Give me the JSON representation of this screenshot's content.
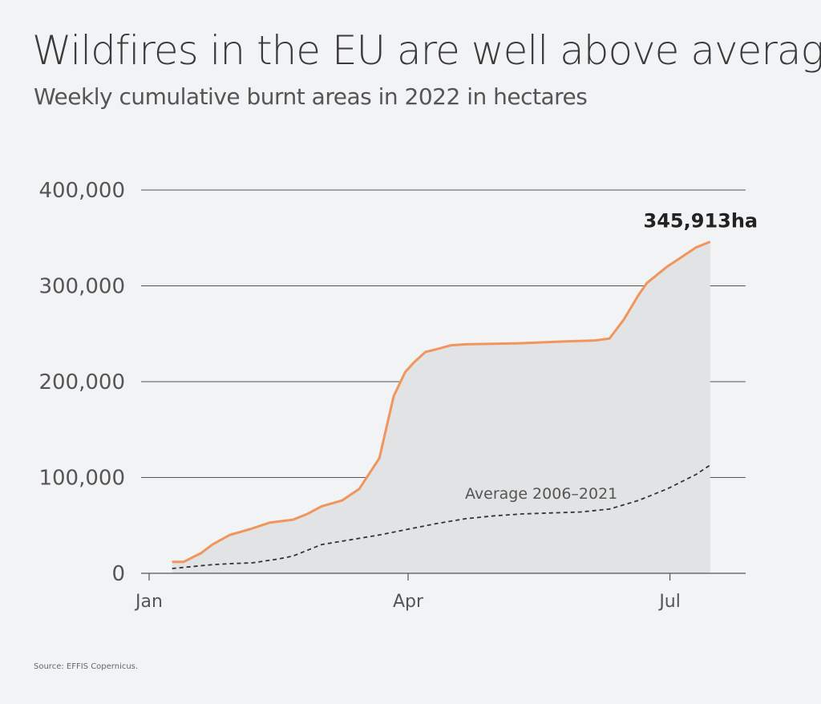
{
  "title": "Wildfires in the EU are well above average",
  "subtitle": "Weekly cumulative burnt areas in 2022 in hectares",
  "source": "Source: EFFIS Copernicus.",
  "colors": {
    "primary": "#f0955c",
    "average": "#333333",
    "area": "#e2e3e5",
    "grid": "#555555"
  },
  "chart_data": {
    "type": "line",
    "ylim": [
      0,
      400000
    ],
    "yticks": [
      {
        "value": 0,
        "label": "0"
      },
      {
        "value": 100000,
        "label": "100,000"
      },
      {
        "value": 200000,
        "label": "200,000"
      },
      {
        "value": 300000,
        "label": "300,000"
      },
      {
        "value": 400000,
        "label": "400,000"
      }
    ],
    "xlim": [
      0,
      230
    ],
    "xticks": [
      {
        "value": 0,
        "label": "Jan"
      },
      {
        "value": 90,
        "label": "Apr"
      },
      {
        "value": 181,
        "label": "Jul"
      }
    ],
    "grid": true,
    "end_annotation": "345,913ha",
    "series": [
      {
        "name": "",
        "style": "solid",
        "x": [
          8,
          12,
          18,
          22,
          28,
          35,
          42,
          50,
          55,
          60,
          67,
          73,
          80,
          85,
          89,
          92,
          96,
          100,
          105,
          110,
          128,
          145,
          155,
          160,
          165,
          170,
          173,
          180,
          185,
          190,
          195
        ],
        "y": [
          12000,
          12000,
          21000,
          30000,
          40000,
          46000,
          53000,
          56000,
          62000,
          70000,
          76000,
          88000,
          120000,
          185000,
          210000,
          220000,
          231000,
          234000,
          238000,
          239000,
          240000,
          242000,
          243000,
          245000,
          265000,
          290000,
          303000,
          320000,
          330000,
          340000,
          346000
        ]
      },
      {
        "name": "Average 2006–2021",
        "style": "dashed",
        "x": [
          8,
          15,
          22,
          28,
          36,
          45,
          50,
          60,
          70,
          80,
          90,
          100,
          110,
          120,
          130,
          140,
          150,
          160,
          170,
          180,
          190,
          195
        ],
        "y": [
          5000,
          7000,
          9000,
          10000,
          11000,
          15000,
          18000,
          30000,
          35000,
          40000,
          46000,
          52000,
          57000,
          60000,
          62000,
          63000,
          64000,
          67000,
          76000,
          88000,
          103000,
          113000
        ]
      }
    ]
  }
}
